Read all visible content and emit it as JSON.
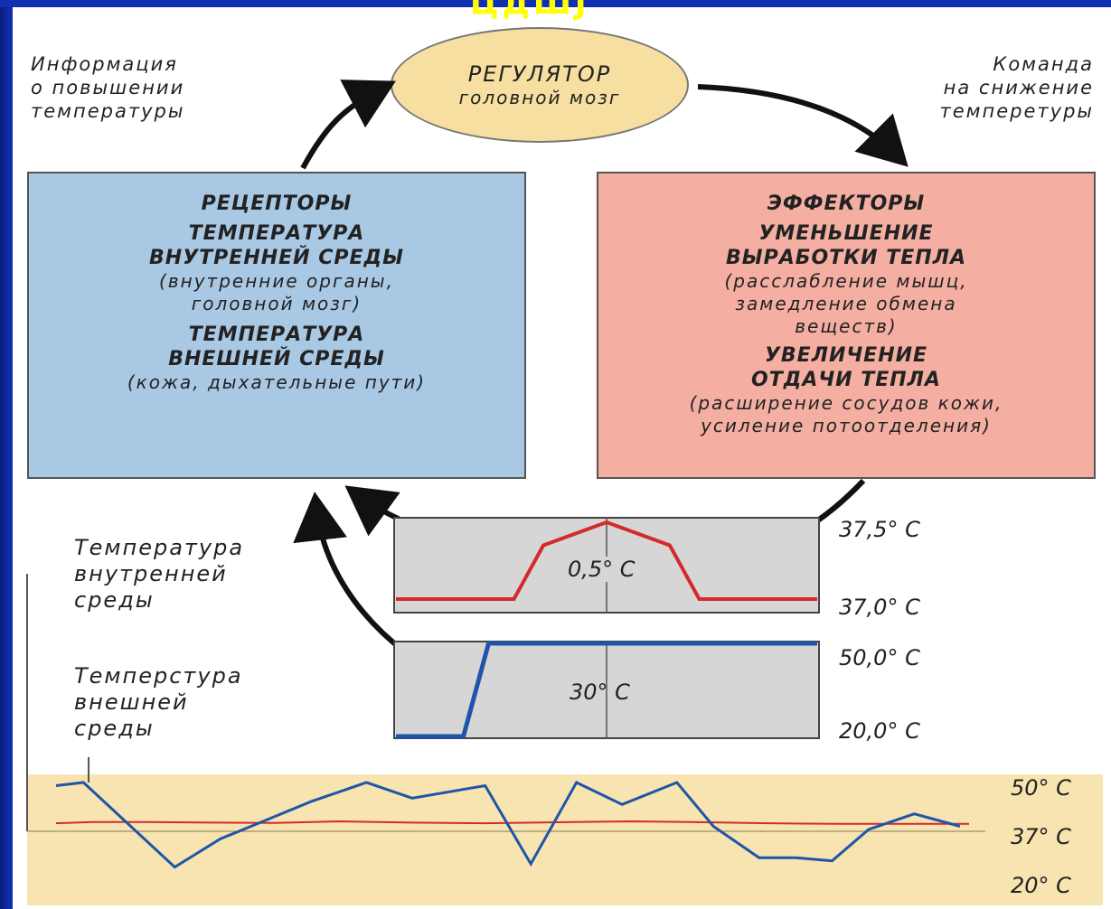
{
  "slide_title": "ЦДШЈ",
  "regulator": {
    "title": "РЕГУЛЯТОР",
    "subtitle": "головной мозг"
  },
  "note_left": "Информация\nо повышении\nтемпературы",
  "note_right": "Команда\nна снижение\nтемперетуры",
  "receptors": {
    "title": "РЕЦЕПТОРЫ",
    "item1_title": "ТЕМПЕРАТУРА\nВНУТРЕННЕЙ СРЕДЫ",
    "item1_detail": "(внутренние органы,\nголовной мозг)",
    "item2_title": "ТЕМПЕРАТУРА\nВНЕШНЕЙ СРЕДЫ",
    "item2_detail": "(кожа, дыхательные пути)"
  },
  "effectors": {
    "title": "ЭФФЕКТОРЫ",
    "item1_title": "УМЕНЬШЕНИЕ\nВЫРАБОТКИ ТЕПЛА",
    "item1_detail": "(расслабление мышц,\nзамедление обмена\nвеществ)",
    "item2_title": "УВЕЛИЧЕНИЕ\nОТДАЧИ ТЕПЛА",
    "item2_detail": "(расширение сосудов кожи,\nусиление потоотделения)"
  },
  "label_internal": "Температура\nвнутренней\nсреды",
  "label_external": "Темперстура\nвнешней\nсреды",
  "colors": {
    "receptors_fill": "#a9c8e4",
    "effectors_fill": "#f4aea2",
    "regulator_fill": "#f6dfa0",
    "internal_line": "#d42a2a",
    "external_line": "#1f55a8",
    "chart_bg": "#d6d6d6",
    "band": "#f7e4b0"
  },
  "chart_data": [
    {
      "type": "line",
      "title": "",
      "delta_label": "0,5° C",
      "ytick_labels": [
        "37,5° C",
        "37,0° C"
      ],
      "ylim": [
        37.0,
        37.5
      ],
      "series": [
        {
          "x": [
            0,
            0.28,
            0.35,
            0.5,
            0.65,
            0.72,
            1.0
          ],
          "y": [
            37.0,
            37.0,
            37.35,
            37.5,
            37.35,
            37.0,
            37.0
          ]
        }
      ]
    },
    {
      "type": "line",
      "title": "",
      "delta_label": "30° C",
      "ytick_labels": [
        "50,0° C",
        "20,0° C"
      ],
      "ylim": [
        20,
        50
      ],
      "series": [
        {
          "x": [
            0,
            0.16,
            0.22,
            1.0
          ],
          "y": [
            20,
            20,
            50,
            50
          ]
        }
      ]
    },
    {
      "type": "line",
      "title": "",
      "ytick_labels": [
        "50° C",
        "37° C",
        "20° C"
      ],
      "ylim": [
        20,
        50
      ],
      "series": [
        {
          "x": [
            0,
            4,
            10,
            17,
            24,
            31,
            39,
            47,
            55,
            63,
            71,
            78,
            86,
            94,
            100
          ],
          "y": [
            37,
            37.4,
            37.4,
            37.2,
            37.1,
            37.6,
            37.2,
            37.0,
            37.3,
            37.6,
            37.3,
            37.0,
            36.8,
            36.8,
            36.8
          ]
        },
        {
          "x": [
            0,
            3,
            13,
            18,
            23,
            28,
            34,
            39,
            47,
            52,
            57,
            62,
            68,
            72,
            77,
            81,
            85,
            89,
            94,
            99
          ],
          "y": [
            49,
            50,
            23,
            32,
            38,
            44,
            50,
            45,
            49,
            24,
            50,
            43,
            50,
            36,
            26,
            26,
            25,
            35,
            40,
            36
          ]
        }
      ]
    }
  ]
}
